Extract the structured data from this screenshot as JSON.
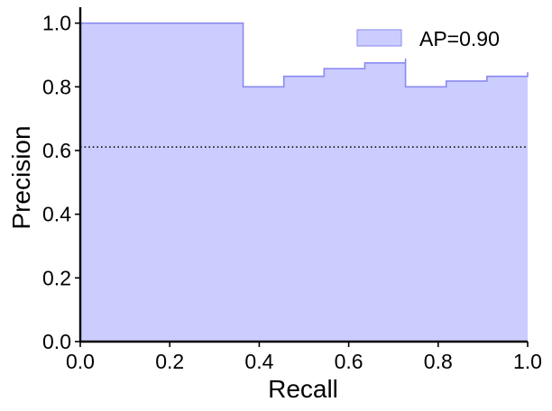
{
  "chart_data": {
    "type": "area",
    "title": "",
    "xlabel": "Recall",
    "ylabel": "Precision",
    "xlim": [
      0.0,
      1.0
    ],
    "ylim": [
      0.0,
      1.05
    ],
    "xticks": [
      "0.0",
      "0.2",
      "0.4",
      "0.6",
      "0.8",
      "1.0"
    ],
    "yticks": [
      "0.0",
      "0.2",
      "0.4",
      "0.6",
      "0.8",
      "1.0"
    ],
    "grid": false,
    "legend_position": "top-right",
    "series": [
      {
        "name": "AP=0.90",
        "style": "step-post filled",
        "color": "#8a8af0",
        "fill": "#cccdff",
        "x": [
          0.0,
          0.364,
          0.364,
          0.455,
          0.545,
          0.636,
          0.727,
          0.727,
          0.818,
          0.909,
          1.0
        ],
        "y": [
          1.0,
          1.0,
          0.8,
          0.833,
          0.857,
          0.875,
          0.889,
          0.8,
          0.818,
          0.833,
          0.846
        ]
      }
    ],
    "reference_line": {
      "orientation": "horizontal",
      "y": 0.611,
      "style": "dotted",
      "color": "#000000"
    }
  }
}
